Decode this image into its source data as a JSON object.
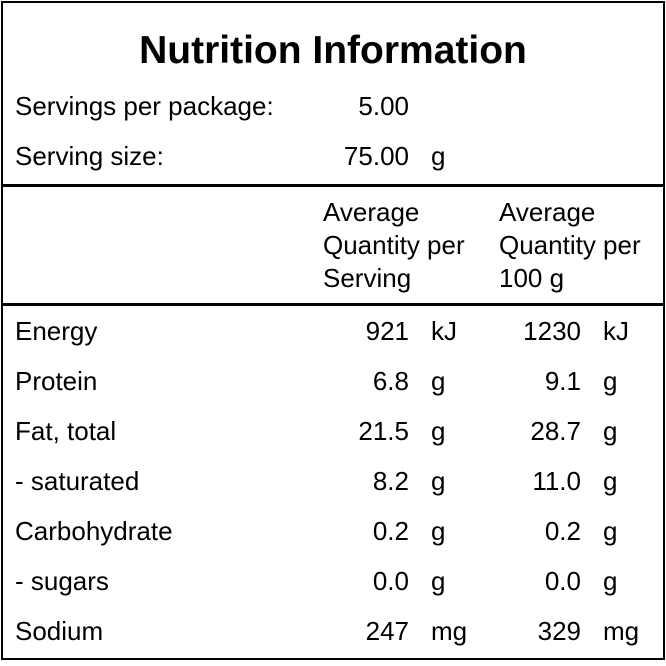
{
  "title": "Nutrition Information",
  "servings_per_package": {
    "label": "Servings per package:",
    "value": "5.00"
  },
  "serving_size": {
    "label": "Serving size:",
    "value": "75.00",
    "unit": "g"
  },
  "column_headers": {
    "per_serving": [
      "Average",
      "Quantity per",
      "Serving"
    ],
    "per_100g": [
      "Average",
      "Quantity per",
      "100 g"
    ]
  },
  "rows": [
    {
      "name": "Energy",
      "serving": "921",
      "serving_unit": "kJ",
      "per100": "1230",
      "per100_unit": "kJ"
    },
    {
      "name": "Protein",
      "serving": "6.8",
      "serving_unit": "g",
      "per100": "9.1",
      "per100_unit": "g"
    },
    {
      "name": "Fat, total",
      "serving": "21.5",
      "serving_unit": "g",
      "per100": "28.7",
      "per100_unit": "g"
    },
    {
      "name": "- saturated",
      "serving": "8.2",
      "serving_unit": "g",
      "per100": "11.0",
      "per100_unit": "g"
    },
    {
      "name": "Carbohydrate",
      "serving": "0.2",
      "serving_unit": "g",
      "per100": "0.2",
      "per100_unit": "g"
    },
    {
      "name": "- sugars",
      "serving": "0.0",
      "serving_unit": "g",
      "per100": "0.0",
      "per100_unit": "g"
    },
    {
      "name": "Sodium",
      "serving": "247",
      "serving_unit": "mg",
      "per100": "329",
      "per100_unit": "mg"
    }
  ]
}
